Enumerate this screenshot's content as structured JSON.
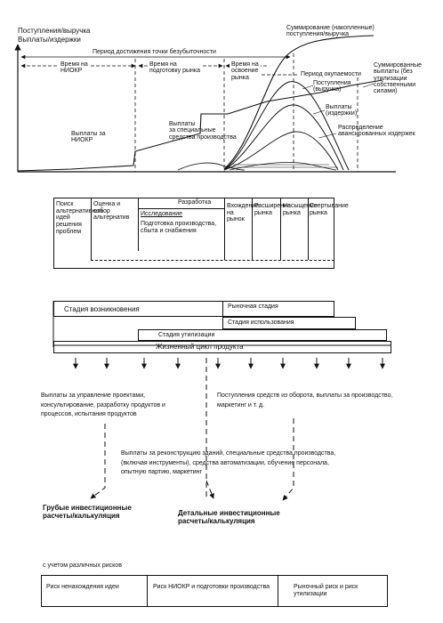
{
  "top_chart": {
    "y_axis_label_1": "Поступления/выручка",
    "y_axis_label_2": "Выплаты/издержки",
    "breakeven_period": "Период достижения точки безубыточности",
    "time_niokr_1": "Время на",
    "time_niokr_2": "НИОКР",
    "time_prep_1": "Время на",
    "time_prep_2": "подготовку рынка",
    "time_market_1": "Время на",
    "time_market_2": "освоение",
    "time_market_3": "рынка",
    "payback": "Период окупаемости",
    "label_cum_revenue_1": "Суммирование (накопленные)",
    "label_cum_revenue_2": "поступления/выручка",
    "label_cum_payments": "Суммированные выплаты (без утилизации собственными силами)",
    "label_revenue_1": "Поступления",
    "label_revenue_2": "(выручка)",
    "label_payments_1": "Выплаты",
    "label_payments_2": "(издержки)",
    "label_niokr_payments_1": "Выплаты за",
    "label_niokr_payments_2": "НИОКР",
    "label_special_1": "Выплаты",
    "label_special_2": "за специальные",
    "label_special_3": "средства производства",
    "label_distributed_1": "Распределение",
    "label_distributed_2": "авансированных издержек"
  },
  "stages_table": {
    "col_search": "Поиск альтернативных идей решения проблем",
    "col_evaluation": "Оценка и отбор альтернатив",
    "development": "Разработка",
    "research": "Исследование",
    "preparation": "Подготовка производства, сбыта и снабжения",
    "col_entry": "Вхождение на рынок",
    "col_expansion": "Расширение рынка",
    "col_saturation": "Насыщение рынка",
    "col_decline": "Свертывание рынка"
  },
  "lifecycle": {
    "origination": "Стадия возникновения",
    "market_stage": "Рыночная стадия",
    "usage_stage": "Стадия использования",
    "utilization_stage": "Стадия утилизации",
    "product_lifecycle": "Жизненный цикл продукта"
  },
  "flows": {
    "left_payments": "Выплаты за управление проектами, консультирование, разработку продуктов и процессов, испытания продуктов",
    "right_receipts": "Поступления средств из оборота, выплаты за производство, маркетинг и т. д.",
    "middle_payments": "Выплаты за реконструкцию зданий, специальные средства производства, (включая инструменты), средства автоматизации, обучение персонала, опытную партию, маркетинг",
    "rough_calc": "Грубые инвестиционные расчеты/калькуляция",
    "detailed_calc": "Детальные инвестиционные расчеты/калькуляция"
  },
  "risks": {
    "heading": "с учетом различных рисков",
    "risk_idea": "Риск ненахождения идеи",
    "risk_niokr": "Риск НИОКР и подготовки производства",
    "risk_market": "Рыночный риск и риск утилизации"
  }
}
